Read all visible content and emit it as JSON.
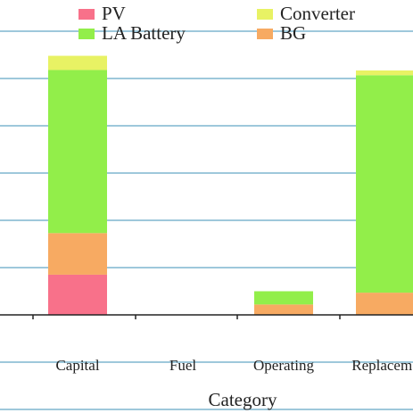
{
  "chart_data": {
    "type": "bar",
    "stacked": true,
    "xlabel": "Category",
    "ylabel": "",
    "categories": [
      "Capital",
      "Fuel",
      "Operating",
      "Replaceme"
    ],
    "ylim": [
      -2,
      6.5
    ],
    "grid": true,
    "legend_position": "top",
    "series": [
      {
        "name": "PV",
        "color": "#f8718a",
        "values": [
          0.85,
          0,
          0,
          0
        ]
      },
      {
        "name": "LA Battery",
        "color": "#92ee4a",
        "values": [
          3.45,
          0,
          0.28,
          4.6
        ]
      },
      {
        "name": "Converter",
        "color": "#e8f264",
        "values": [
          0.3,
          0,
          0,
          0.1
        ]
      },
      {
        "name": "BG",
        "color": "#f7aa62",
        "values": [
          0.88,
          0,
          0.22,
          0.47
        ]
      }
    ]
  }
}
